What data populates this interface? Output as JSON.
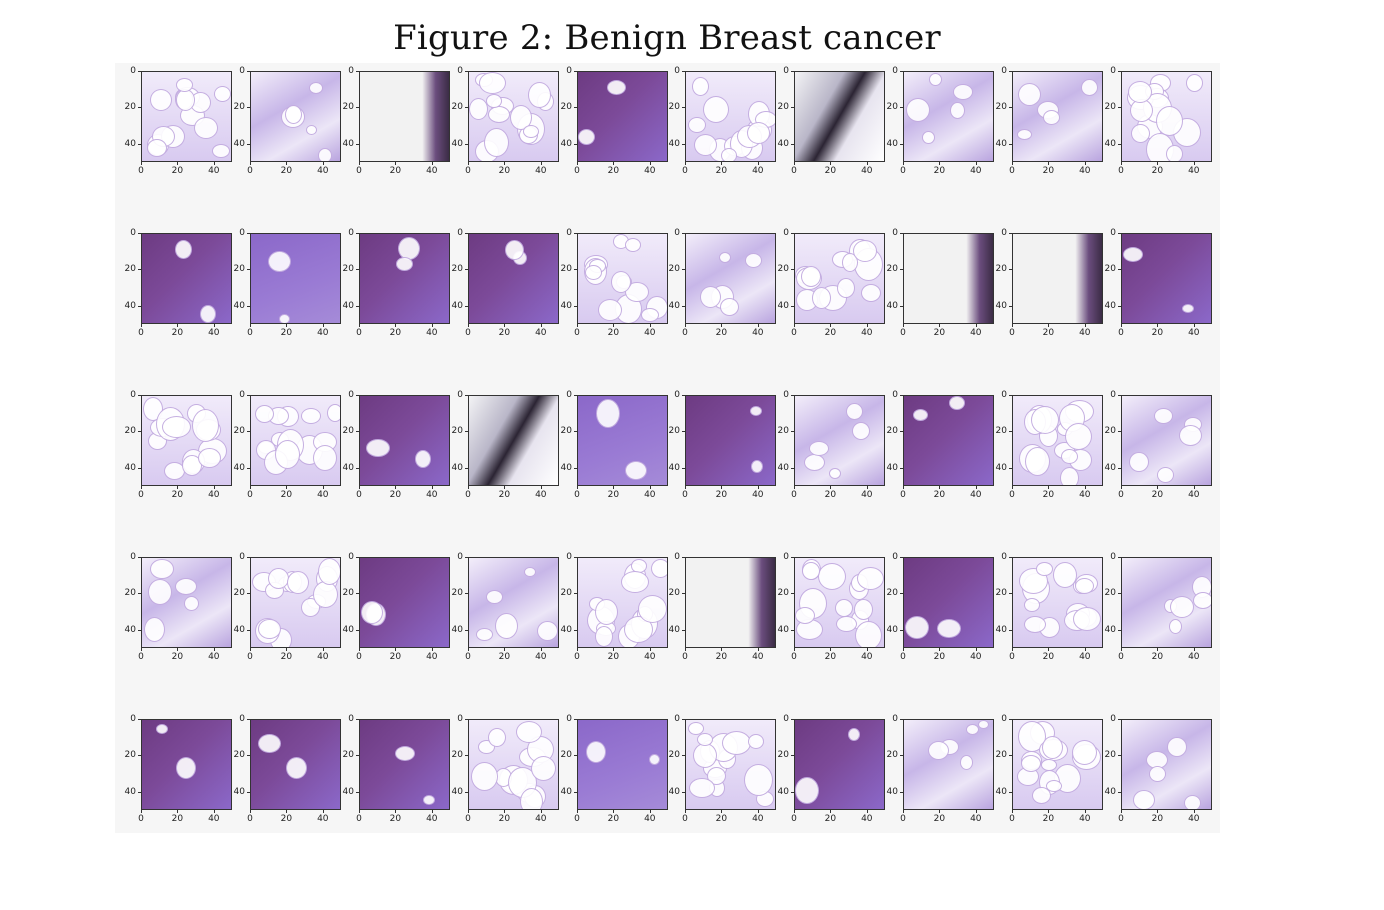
{
  "figure": {
    "caption": "Figure 2: Benign Breast cancer"
  },
  "grid": {
    "rows": 5,
    "cols": 10,
    "y_ticks": [
      "0",
      "20",
      "40"
    ],
    "x_ticks": [
      "0",
      "20",
      "40"
    ]
  },
  "colors": {
    "tissue_dense": "#6d3b82",
    "tissue_medium": "#8b68c9",
    "tissue_light": "#b8a4e0",
    "background": "#f6f6f6",
    "fat_white": "#ffffff"
  },
  "tiles": [
    "fat",
    "stroma",
    "white",
    "fat",
    "dense",
    "fat",
    "dark",
    "stroma",
    "stroma",
    "fat",
    "dense",
    "medium",
    "dense",
    "dense",
    "fat",
    "stroma",
    "fat",
    "white",
    "white",
    "dense",
    "fat",
    "fat",
    "dense",
    "dark",
    "medium",
    "dense",
    "stroma",
    "dense",
    "fat",
    "stroma",
    "stroma",
    "fat",
    "dense",
    "stroma",
    "fat",
    "white",
    "fat",
    "dense",
    "fat",
    "stroma",
    "dense",
    "dense",
    "dense",
    "fat",
    "medium",
    "fat",
    "dense",
    "stroma",
    "fat",
    "stroma"
  ]
}
